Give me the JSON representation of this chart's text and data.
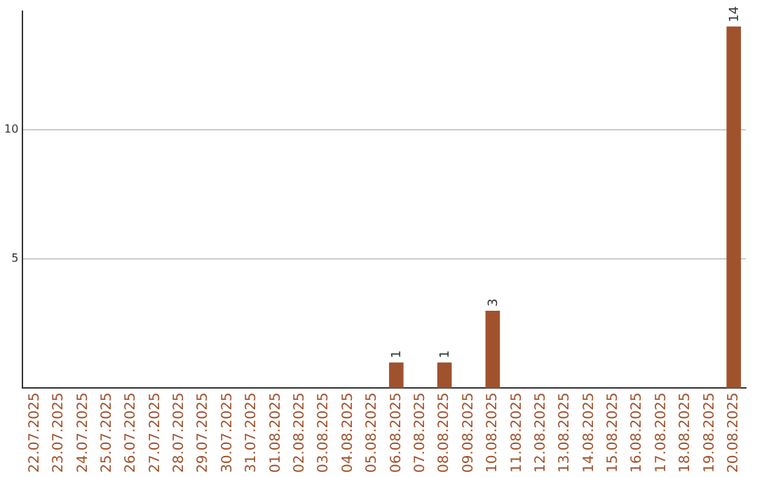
{
  "chart_data": {
    "type": "bar",
    "categories": [
      "22.07.2025",
      "23.07.2025",
      "24.07.2025",
      "25.07.2025",
      "26.07.2025",
      "27.07.2025",
      "28.07.2025",
      "29.07.2025",
      "30.07.2025",
      "31.07.2025",
      "01.08.2025",
      "02.08.2025",
      "03.08.2025",
      "04.08.2025",
      "05.08.2025",
      "06.08.2025",
      "07.08.2025",
      "08.08.2025",
      "09.08.2025",
      "10.08.2025",
      "11.08.2025",
      "12.08.2025",
      "13.08.2025",
      "14.08.2025",
      "15.08.2025",
      "16.08.2025",
      "17.08.2025",
      "18.08.2025",
      "19.08.2025",
      "20.08.2025"
    ],
    "values": [
      0,
      0,
      0,
      0,
      0,
      0,
      0,
      0,
      0,
      0,
      0,
      0,
      0,
      0,
      0,
      1,
      0,
      1,
      0,
      3,
      0,
      0,
      0,
      0,
      0,
      0,
      0,
      0,
      0,
      14
    ],
    "value_labels": [
      null,
      null,
      null,
      null,
      null,
      null,
      null,
      null,
      null,
      null,
      null,
      null,
      null,
      null,
      null,
      "1",
      null,
      "1",
      null,
      "3",
      null,
      null,
      null,
      null,
      null,
      null,
      null,
      null,
      null,
      "14"
    ],
    "color": "#a0522d",
    "ylim": [
      0,
      14.6
    ],
    "yticks": [
      5,
      10
    ],
    "grid": "y",
    "legend": false
  }
}
